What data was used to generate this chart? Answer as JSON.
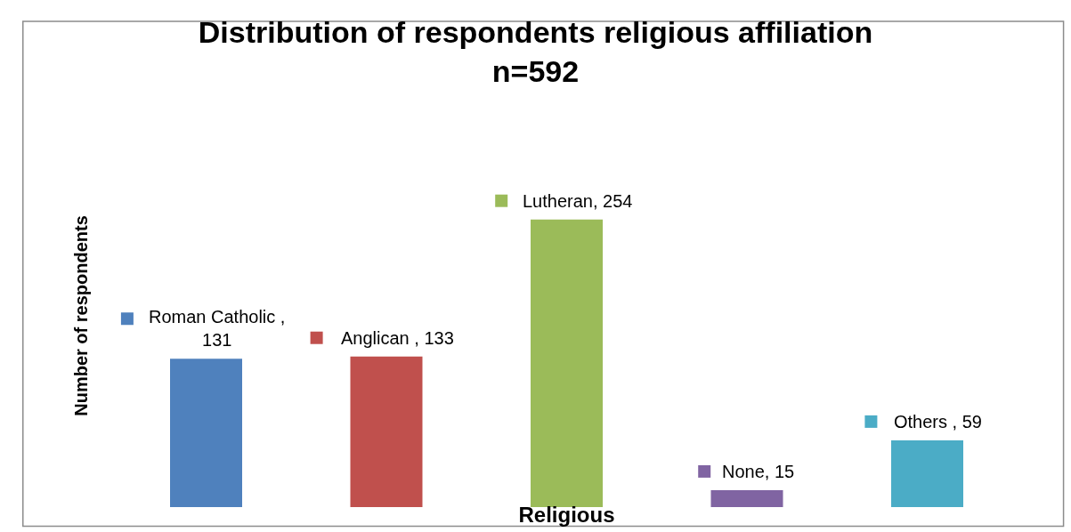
{
  "chart_data": {
    "type": "bar",
    "title": "Distribution of respondents religious affiliation\nn=592",
    "xlabel": "Religious",
    "ylabel": "Number of respondents",
    "categories": [
      null,
      null,
      null,
      null,
      null
    ],
    "values": [
      131,
      133,
      254,
      15,
      59
    ],
    "colors": [
      "#4f81bd",
      "#c0504d",
      "#9bbb59",
      "#8064a2",
      "#4bacc6"
    ],
    "value_labels": [
      "Roman Catholic ,\n131",
      "Anglican , 133",
      "Lutheran, 254",
      "None, 15",
      "Others , 59"
    ],
    "tick_labels": false
  }
}
